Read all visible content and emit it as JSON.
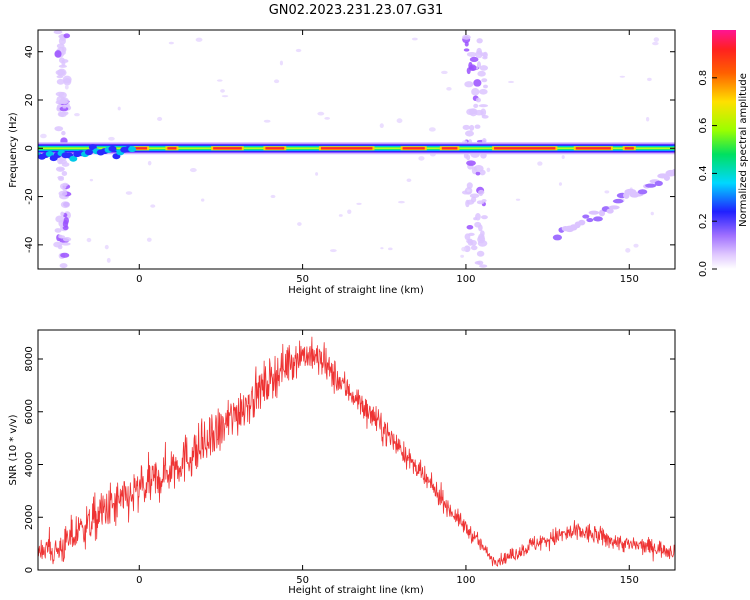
{
  "figure": {
    "title": "GN02.2023.231.23.07.G31"
  },
  "chart_data": [
    {
      "type": "heatmap",
      "xlabel": "Height of straight line (km)",
      "ylabel": "Frequency (Hz)",
      "xlim": [
        -31,
        164
      ],
      "ylim": [
        -50,
        49
      ],
      "xticks": [
        0,
        50,
        100,
        150
      ],
      "yticks": [
        -40,
        -20,
        0,
        20,
        40
      ],
      "grid": false,
      "colorbar": {
        "label": "Normalized spectral amplitude",
        "range": [
          0,
          1
        ],
        "ticks": [
          0.0,
          0.2,
          0.4,
          0.6,
          0.8
        ],
        "tick_labels": [
          "0.0",
          "0.2",
          "0.4",
          "0.6",
          "0.8"
        ],
        "colormap": [
          "#ffffff",
          "#e0c8ff",
          "#a070ff",
          "#2020ff",
          "#00d8ff",
          "#00e060",
          "#9aff00",
          "#ffe000",
          "#ff6000",
          "#ff2020",
          "#ff1493"
        ]
      },
      "features": [
        {
          "kind": "carrier-ridge",
          "x_range": [
            -31,
            164
          ],
          "frequency_hz": 0,
          "peak_amplitude": 0.85
        },
        {
          "kind": "vertical-noise-band",
          "x_range": [
            -25,
            -22
          ],
          "frequency_range": [
            -50,
            49
          ]
        },
        {
          "kind": "vertical-noise-band",
          "x_range": [
            100,
            106
          ],
          "frequency_range": [
            -50,
            49
          ]
        },
        {
          "kind": "faint-sloped-streak",
          "x_range": [
            128,
            164
          ],
          "frequency_range": [
            -36,
            -10
          ]
        }
      ]
    },
    {
      "type": "line",
      "xlabel": "Height of straight line (km)",
      "ylabel": "SNR (10 * v/v)",
      "xlim": [
        -31,
        164
      ],
      "ylim": [
        0,
        9100
      ],
      "xticks": [
        0,
        50,
        100,
        150
      ],
      "yticks": [
        0,
        2000,
        4000,
        6000,
        8000
      ],
      "grid": false,
      "series": [
        {
          "color": "#ee3333",
          "x": [
            -31,
            -25,
            -20,
            -15,
            -10,
            -5,
            0,
            5,
            10,
            15,
            20,
            25,
            30,
            35,
            40,
            45,
            50,
            55,
            60,
            65,
            70,
            75,
            80,
            85,
            90,
            95,
            100,
            105,
            108,
            110,
            115,
            120,
            125,
            130,
            135,
            140,
            145,
            150,
            155,
            160,
            164
          ],
          "y": [
            900,
            700,
            1300,
            1800,
            2300,
            2600,
            3000,
            3400,
            3900,
            4300,
            4700,
            5300,
            6000,
            6600,
            7200,
            7800,
            8200,
            8000,
            7300,
            6700,
            6000,
            5300,
            4600,
            3800,
            3100,
            2300,
            1600,
            900,
            400,
            350,
            600,
            950,
            1150,
            1350,
            1450,
            1300,
            1100,
            950,
            900,
            800,
            700
          ],
          "noise": [
            500,
            500,
            600,
            600,
            700,
            700,
            700,
            700,
            700,
            700,
            700,
            700,
            700,
            700,
            600,
            600,
            500,
            500,
            500,
            400,
            400,
            400,
            300,
            300,
            300,
            250,
            250,
            200,
            150,
            150,
            200,
            250,
            250,
            300,
            300,
            300,
            250,
            250,
            250,
            250,
            250
          ]
        }
      ]
    }
  ]
}
